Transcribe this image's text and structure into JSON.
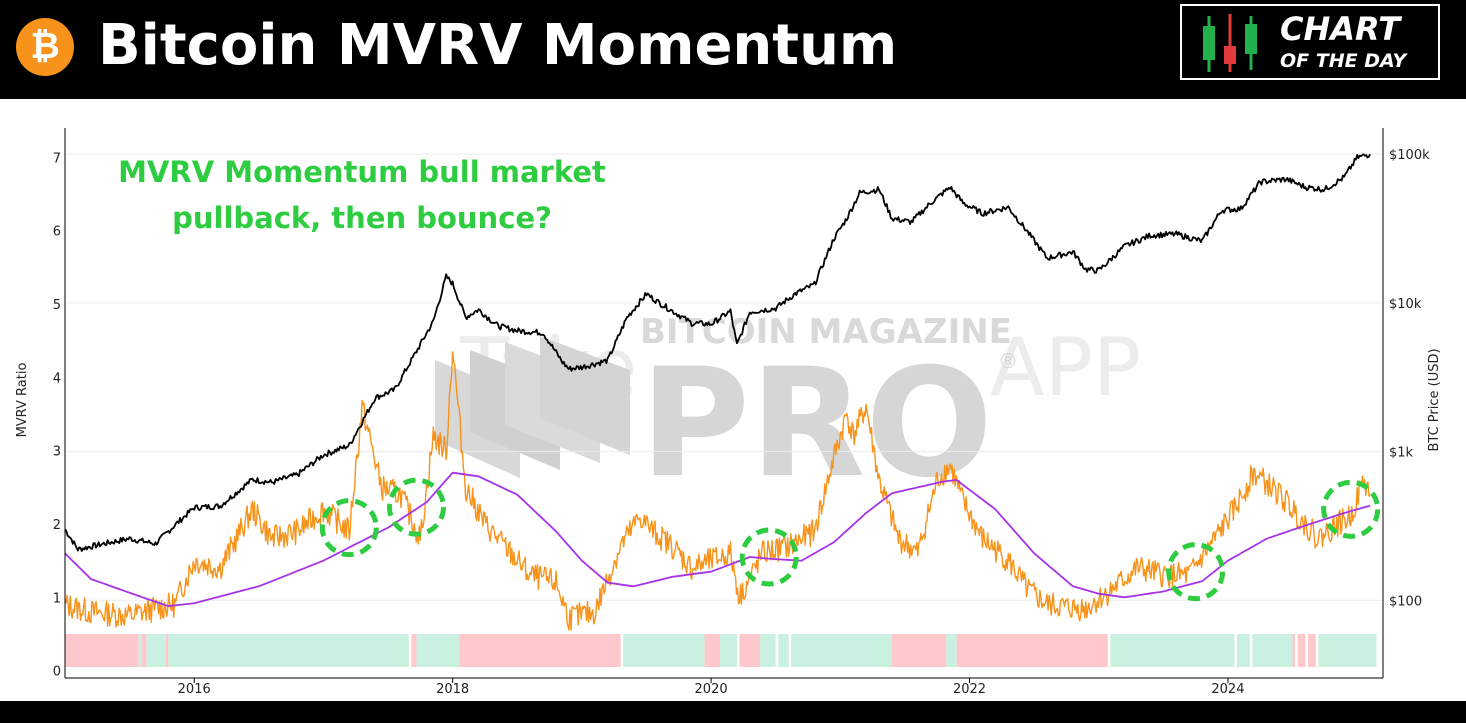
{
  "header": {
    "title": "Bitcoin MVRV Momentum",
    "logo_glyph": "₿",
    "badge_line1": "CHART",
    "badge_line2": "OF THE DAY",
    "colors": {
      "background": "#000000",
      "bitcoin_orange": "#f7931a",
      "candle_green": "#22b14c",
      "candle_red": "#e23b3b"
    }
  },
  "chart_data": {
    "type": "line",
    "annotation": "MVRV Momentum bull market pullback, then bounce?",
    "watermark": {
      "top": "BITCOIN MAGAZINE",
      "main": "PRO",
      "faint": "Take",
      "faint2": "APP",
      "registered": "®"
    },
    "left_axis": {
      "label": "MVRV Ratio",
      "ylim": [
        -0.1,
        7.4
      ],
      "ticks": [
        0,
        1,
        2,
        3,
        4,
        5,
        6,
        7
      ],
      "tick_labels": [
        "0",
        "1",
        "2",
        "3",
        "4",
        "5",
        "6",
        "7"
      ]
    },
    "right_axis": {
      "label": "BTC Price (USD)",
      "scale": "log",
      "ylim": [
        30,
        150000
      ],
      "ticks": [
        100,
        1000,
        10000,
        100000
      ],
      "tick_labels": [
        "$100",
        "$1k",
        "$10k",
        "$100k"
      ]
    },
    "x_axis": {
      "xlim": [
        2015.0,
        2025.2
      ],
      "ticks": [
        2016,
        2018,
        2020,
        2022,
        2024
      ],
      "tick_labels": [
        "2016",
        "2018",
        "2020",
        "2022",
        "2024"
      ]
    },
    "grid": "horizontal",
    "series": [
      {
        "color": "#000000",
        "axis": "right",
        "x": [
          2015.0,
          2015.1,
          2015.3,
          2015.5,
          2015.7,
          2015.85,
          2016.0,
          2016.2,
          2016.45,
          2016.6,
          2016.8,
          2017.0,
          2017.2,
          2017.4,
          2017.55,
          2017.7,
          2017.85,
          2017.95,
          2018.0,
          2018.1,
          2018.2,
          2018.35,
          2018.5,
          2018.7,
          2018.85,
          2018.9,
          2019.0,
          2019.2,
          2019.35,
          2019.5,
          2019.6,
          2019.75,
          2019.85,
          2020.0,
          2020.15,
          2020.2,
          2020.3,
          2020.5,
          2020.65,
          2020.8,
          2020.95,
          2021.05,
          2021.15,
          2021.3,
          2021.4,
          2021.55,
          2021.7,
          2021.85,
          2021.95,
          2022.1,
          2022.3,
          2022.45,
          2022.6,
          2022.8,
          2022.9,
          2023.0,
          2023.2,
          2023.4,
          2023.6,
          2023.8,
          2023.95,
          2024.1,
          2024.25,
          2024.45,
          2024.6,
          2024.75,
          2024.9,
          2025.0,
          2025.1
        ],
        "values": [
          300,
          220,
          240,
          260,
          240,
          320,
          420,
          430,
          650,
          620,
          700,
          950,
          1100,
          2300,
          2600,
          4400,
          7500,
          15000,
          13500,
          8000,
          9000,
          7000,
          6500,
          6300,
          4000,
          3600,
          3700,
          4100,
          8000,
          11500,
          10000,
          8300,
          7300,
          7200,
          8800,
          5200,
          8700,
          9200,
          11500,
          13300,
          27000,
          37000,
          55000,
          58000,
          37000,
          35000,
          47000,
          60000,
          47000,
          40000,
          44000,
          30000,
          20000,
          22000,
          16800,
          16500,
          24000,
          28500,
          29000,
          26000,
          42000,
          43000,
          65000,
          68000,
          60000,
          58000,
          70000,
          95000,
          100000
        ]
      },
      {
        "color": "#f7931a",
        "axis": "left",
        "x": [
          2015.0,
          2015.2,
          2015.5,
          2015.7,
          2015.85,
          2016.0,
          2016.2,
          2016.45,
          2016.6,
          2016.8,
          2017.0,
          2017.2,
          2017.3,
          2017.45,
          2017.6,
          2017.75,
          2017.85,
          2017.95,
          2018.0,
          2018.1,
          2018.25,
          2018.45,
          2018.6,
          2018.8,
          2018.9,
          2019.1,
          2019.3,
          2019.45,
          2019.55,
          2019.7,
          2019.85,
          2020.0,
          2020.15,
          2020.22,
          2020.4,
          2020.6,
          2020.8,
          2020.95,
          2021.05,
          2021.1,
          2021.2,
          2021.3,
          2021.45,
          2021.6,
          2021.75,
          2021.85,
          2021.95,
          2022.1,
          2022.3,
          2022.45,
          2022.6,
          2022.8,
          2022.9,
          2023.1,
          2023.3,
          2023.5,
          2023.7,
          2023.9,
          2024.05,
          2024.2,
          2024.4,
          2024.55,
          2024.7,
          2024.85,
          2024.95,
          2025.05,
          2025.1
        ],
        "values": [
          0.9,
          0.8,
          0.75,
          0.85,
          0.9,
          1.5,
          1.4,
          2.2,
          1.8,
          1.9,
          2.2,
          1.9,
          3.6,
          2.5,
          2.4,
          1.8,
          3.2,
          3.0,
          4.4,
          2.5,
          2.0,
          1.6,
          1.3,
          1.2,
          0.72,
          0.8,
          1.7,
          2.1,
          1.9,
          1.7,
          1.4,
          1.5,
          1.6,
          1.0,
          1.6,
          1.7,
          1.9,
          2.9,
          3.5,
          3.2,
          3.6,
          2.6,
          1.8,
          1.6,
          2.6,
          2.8,
          2.3,
          1.8,
          1.5,
          1.1,
          0.9,
          0.85,
          0.85,
          1.1,
          1.4,
          1.3,
          1.3,
          1.8,
          2.2,
          2.7,
          2.4,
          2.1,
          1.8,
          2.0,
          2.1,
          2.6,
          2.4
        ]
      },
      {
        "color": "#a633e8",
        "axis": "left",
        "x": [
          2015.0,
          2015.2,
          2015.6,
          2015.8,
          2016.0,
          2016.5,
          2017.0,
          2017.5,
          2017.8,
          2018.0,
          2018.2,
          2018.5,
          2018.8,
          2019.0,
          2019.2,
          2019.4,
          2019.7,
          2020.0,
          2020.3,
          2020.5,
          2020.7,
          2020.95,
          2021.2,
          2021.4,
          2021.6,
          2021.8,
          2021.9,
          2022.2,
          2022.5,
          2022.8,
          2023.0,
          2023.2,
          2023.5,
          2023.8,
          2024.0,
          2024.3,
          2024.6,
          2024.9,
          2025.1
        ],
        "values": [
          1.6,
          1.25,
          1.0,
          0.88,
          0.92,
          1.15,
          1.5,
          1.95,
          2.3,
          2.7,
          2.65,
          2.4,
          1.9,
          1.5,
          1.2,
          1.15,
          1.28,
          1.35,
          1.55,
          1.52,
          1.5,
          1.75,
          2.15,
          2.42,
          2.5,
          2.58,
          2.6,
          2.2,
          1.6,
          1.15,
          1.05,
          1.0,
          1.08,
          1.22,
          1.5,
          1.8,
          1.98,
          2.15,
          2.25
        ]
      }
    ],
    "regime_band": {
      "colors": {
        "bear": "#ffc8cc",
        "bull": "#c9f0e0"
      },
      "segments": [
        {
          "from": 2015.0,
          "to": 2015.57,
          "regime": "bear"
        },
        {
          "from": 2015.57,
          "to": 2015.59,
          "regime": "bull"
        },
        {
          "from": 2015.59,
          "to": 2015.63,
          "regime": "bear"
        },
        {
          "from": 2015.63,
          "to": 2015.78,
          "regime": "bull"
        },
        {
          "from": 2015.78,
          "to": 2015.8,
          "regime": "bear"
        },
        {
          "from": 2015.8,
          "to": 2017.66,
          "regime": "bull"
        },
        {
          "from": 2017.68,
          "to": 2017.72,
          "regime": "bear"
        },
        {
          "from": 2017.72,
          "to": 2018.05,
          "regime": "bull"
        },
        {
          "from": 2018.05,
          "to": 2019.3,
          "regime": "bear"
        },
        {
          "from": 2019.32,
          "to": 2019.95,
          "regime": "bull"
        },
        {
          "from": 2019.95,
          "to": 2020.07,
          "regime": "bear"
        },
        {
          "from": 2020.07,
          "to": 2020.2,
          "regime": "bull"
        },
        {
          "from": 2020.22,
          "to": 2020.38,
          "regime": "bear"
        },
        {
          "from": 2020.38,
          "to": 2020.5,
          "regime": "bull"
        },
        {
          "from": 2020.52,
          "to": 2020.6,
          "regime": "bull"
        },
        {
          "from": 2020.62,
          "to": 2021.4,
          "regime": "bull"
        },
        {
          "from": 2021.4,
          "to": 2021.82,
          "regime": "bear"
        },
        {
          "from": 2021.82,
          "to": 2021.9,
          "regime": "bull"
        },
        {
          "from": 2021.9,
          "to": 2023.07,
          "regime": "bear"
        },
        {
          "from": 2023.09,
          "to": 2024.05,
          "regime": "bull"
        },
        {
          "from": 2024.07,
          "to": 2024.17,
          "regime": "bull"
        },
        {
          "from": 2024.19,
          "to": 2024.5,
          "regime": "bull"
        },
        {
          "from": 2024.5,
          "to": 2024.52,
          "regime": "bear"
        },
        {
          "from": 2024.54,
          "to": 2024.6,
          "regime": "bear"
        },
        {
          "from": 2024.62,
          "to": 2024.68,
          "regime": "bear"
        },
        {
          "from": 2024.7,
          "to": 2025.15,
          "regime": "bull"
        }
      ]
    },
    "highlight_circles": [
      {
        "x": 2017.2,
        "y": 1.95
      },
      {
        "x": 2017.72,
        "y": 2.23
      },
      {
        "x": 2020.45,
        "y": 1.55
      },
      {
        "x": 2023.75,
        "y": 1.35
      },
      {
        "x": 2024.95,
        "y": 2.2
      }
    ]
  }
}
